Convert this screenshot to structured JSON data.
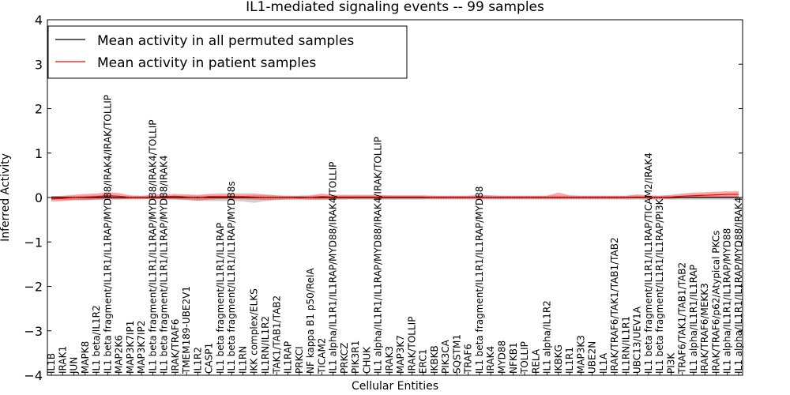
{
  "chart_data": {
    "type": "line",
    "title": "IL1-mediated signaling events -- 99 samples",
    "xlabel": "Cellular Entities",
    "ylabel": "Inferred Activity",
    "ylim": [
      -4,
      4
    ],
    "yticks": [
      -4,
      -3,
      -2,
      -1,
      0,
      1,
      2,
      3,
      4
    ],
    "ytick_labels": [
      "−4",
      "−3",
      "−2",
      "−1",
      "0",
      "1",
      "2",
      "3",
      "4"
    ],
    "grid": false,
    "legend_position": "top-left",
    "categories": [
      "IL1B",
      "IRAK1",
      "JUN",
      "MAPK8",
      "IL1 beta/IL1R2",
      "IL1 beta fragment/IL1R1/IL1RAP/MYD88/IRAK4/IRAK/TOLLIP",
      "MAP2K6",
      "MAP3K7IP1",
      "MAP3K7IP2",
      "IL1 beta fragment/IL1R1/IL1RAP/MYD88/IRAK4/TOLLIP",
      "IL1 beta fragment/IL1R1/IL1RAP/MYD88/IRAK4",
      "IRAK/TRAF6",
      "TMEM189-UBE2V1",
      "IL1R2",
      "CASP1",
      "IL1 beta fragment/IL1R1/IL1RAP",
      "IL1 beta fragment/IL1R1/IL1RAP/MYD88s",
      "IL1RN",
      "IKK complex/ELKS",
      "IL1RN/IL1R2",
      "TAK1/TAB1/TAB2",
      "IL1RAP",
      "PRKCI",
      "NF kappa B1 p50/RelA",
      "TICAM2",
      "IL1 alpha/IL1R1/IL1RAP/MYD88/IRAK4/TOLLIP",
      "PRKCZ",
      "PIK3R1",
      "CHUK",
      "IL1 alpha/IL1R1/IL1RAP/MYD88/IRAK4/IRAK/TOLLIP",
      "IRAK3",
      "MAP3K7",
      "IRAK/TOLLIP",
      "ERC1",
      "IKBKB",
      "PIK3CA",
      "SQSTM1",
      "TRAF6",
      "IL1 beta fragment/IL1R1/IL1RAP/MYD88",
      "IRAK4",
      "MYD88",
      "NFKB1",
      "TOLLIP",
      "RELA",
      "IL1 alpha/IL1R2",
      "IKBKG",
      "IL1R1",
      "MAP3K3",
      "UBE2N",
      "IL1A",
      "IRAK/TRAF6/TAK1/TAB1/TAB2",
      "IL1RN/IL1R1",
      "UBC13/UEV1A",
      "IL1 beta fragment/IL1R1/IL1RAP/TICAM2/IRAK4",
      "IL1 beta fragment/IL1R1/IL1RAP/PI3K",
      "PI3K",
      "TRAF6/TAK1/TAB1/TAB2",
      "IL1 alpha/IL1R1/IL1RAP",
      "IRAK/TRAF6/MEKK3",
      "IRAK/TRAF6/p62/Atypical PKCs",
      "IL1 alpha/IL1R1/IL1RAP/MYD88",
      "IL1 alpha/IL1R1/IL1RAP/MYD88/IRAK4"
    ],
    "series": [
      {
        "name": "Mean activity in all permuted samples",
        "color": "#000000",
        "values": [
          0,
          0,
          0,
          0,
          0,
          0,
          0,
          0,
          0,
          0,
          0,
          0,
          0,
          0,
          0,
          0,
          0,
          0,
          0,
          0,
          0,
          0,
          0,
          0,
          0,
          0,
          0,
          0,
          0,
          0,
          0,
          0,
          0,
          0,
          0,
          0,
          0,
          0,
          0,
          0,
          0,
          0,
          0,
          0,
          0,
          0,
          0,
          0,
          0,
          0,
          0,
          0,
          0,
          0,
          0,
          0,
          0,
          0,
          0,
          0,
          0,
          0
        ],
        "band_upper": [
          0.03,
          0.03,
          0.03,
          0.04,
          0.05,
          0.05,
          0.04,
          0.03,
          0.03,
          0.03,
          0.03,
          0.04,
          0.04,
          0.04,
          0.04,
          0.04,
          0.04,
          0.04,
          0.05,
          0.05,
          0.04,
          0.04,
          0.04,
          0.04,
          0.04,
          0.04,
          0.04,
          0.04,
          0.04,
          0.04,
          0.04,
          0.04,
          0.04,
          0.04,
          0.04,
          0.04,
          0.04,
          0.04,
          0.04,
          0.04,
          0.04,
          0.04,
          0.04,
          0.04,
          0.04,
          0.04,
          0.04,
          0.04,
          0.04,
          0.04,
          0.04,
          0.04,
          0.04,
          0.04,
          0.04,
          0.04,
          0.04,
          0.04,
          0.04,
          0.04,
          0.04,
          0.04
        ],
        "band_lower": [
          -0.05,
          -0.06,
          -0.06,
          -0.06,
          -0.05,
          -0.05,
          -0.05,
          -0.04,
          -0.04,
          -0.04,
          -0.04,
          -0.05,
          -0.06,
          -0.07,
          -0.08,
          -0.08,
          -0.08,
          -0.09,
          -0.12,
          -0.08,
          -0.06,
          -0.05,
          -0.05,
          -0.05,
          -0.05,
          -0.05,
          -0.05,
          -0.05,
          -0.05,
          -0.05,
          -0.05,
          -0.05,
          -0.05,
          -0.05,
          -0.05,
          -0.05,
          -0.05,
          -0.05,
          -0.05,
          -0.05,
          -0.05,
          -0.05,
          -0.05,
          -0.05,
          -0.05,
          -0.05,
          -0.05,
          -0.05,
          -0.05,
          -0.05,
          -0.05,
          -0.05,
          -0.05,
          -0.05,
          -0.05,
          -0.05,
          -0.05,
          -0.05,
          -0.05,
          -0.05,
          -0.05,
          -0.05
        ]
      },
      {
        "name": "Mean activity in patient samples",
        "color": "#ff0000",
        "values": [
          -0.03,
          -0.02,
          0.0,
          0.01,
          0.02,
          0.04,
          0.03,
          0.0,
          0.0,
          0.01,
          0.02,
          0.03,
          0.01,
          -0.01,
          0.02,
          0.02,
          0.02,
          0.02,
          0.01,
          0.0,
          0.0,
          0.0,
          -0.01,
          0.0,
          0.02,
          0.01,
          0.01,
          0.01,
          0.01,
          0.01,
          0.01,
          0.01,
          0.01,
          0.01,
          0.0,
          0.0,
          0.0,
          0.0,
          0.0,
          0.0,
          0.0,
          0.0,
          0.0,
          0.0,
          0.0,
          0.0,
          0.0,
          0.0,
          0.0,
          0.0,
          0.0,
          0.0,
          0.01,
          0.0,
          0.0,
          0.01,
          0.03,
          0.04,
          0.05,
          0.06,
          0.07,
          0.07
        ],
        "band_upper": [
          0.03,
          0.04,
          0.06,
          0.08,
          0.09,
          0.12,
          0.1,
          0.05,
          0.04,
          0.06,
          0.07,
          0.08,
          0.07,
          0.06,
          0.08,
          0.09,
          0.09,
          0.09,
          0.09,
          0.07,
          0.05,
          0.04,
          0.04,
          0.05,
          0.09,
          0.06,
          0.06,
          0.06,
          0.06,
          0.06,
          0.05,
          0.05,
          0.05,
          0.05,
          0.04,
          0.04,
          0.04,
          0.04,
          0.06,
          0.05,
          0.04,
          0.04,
          0.04,
          0.04,
          0.04,
          0.11,
          0.05,
          0.04,
          0.04,
          0.04,
          0.04,
          0.04,
          0.07,
          0.05,
          0.04,
          0.06,
          0.09,
          0.11,
          0.12,
          0.13,
          0.14,
          0.14
        ],
        "band_lower": [
          -0.09,
          -0.08,
          -0.06,
          -0.06,
          -0.05,
          -0.04,
          -0.04,
          -0.04,
          -0.04,
          -0.04,
          -0.04,
          -0.04,
          -0.05,
          -0.07,
          -0.05,
          -0.04,
          -0.04,
          -0.04,
          -0.05,
          -0.06,
          -0.05,
          -0.04,
          -0.04,
          -0.05,
          -0.05,
          -0.04,
          -0.04,
          -0.03,
          -0.03,
          -0.03,
          -0.03,
          -0.03,
          -0.03,
          -0.03,
          -0.03,
          -0.03,
          -0.03,
          -0.03,
          -0.03,
          -0.03,
          -0.03,
          -0.03,
          -0.03,
          -0.03,
          -0.03,
          -0.03,
          -0.03,
          -0.03,
          -0.03,
          -0.03,
          -0.03,
          -0.03,
          -0.02,
          -0.03,
          -0.03,
          -0.03,
          -0.01,
          0.0,
          0.0,
          0.0,
          0.0,
          0.0
        ]
      }
    ]
  }
}
